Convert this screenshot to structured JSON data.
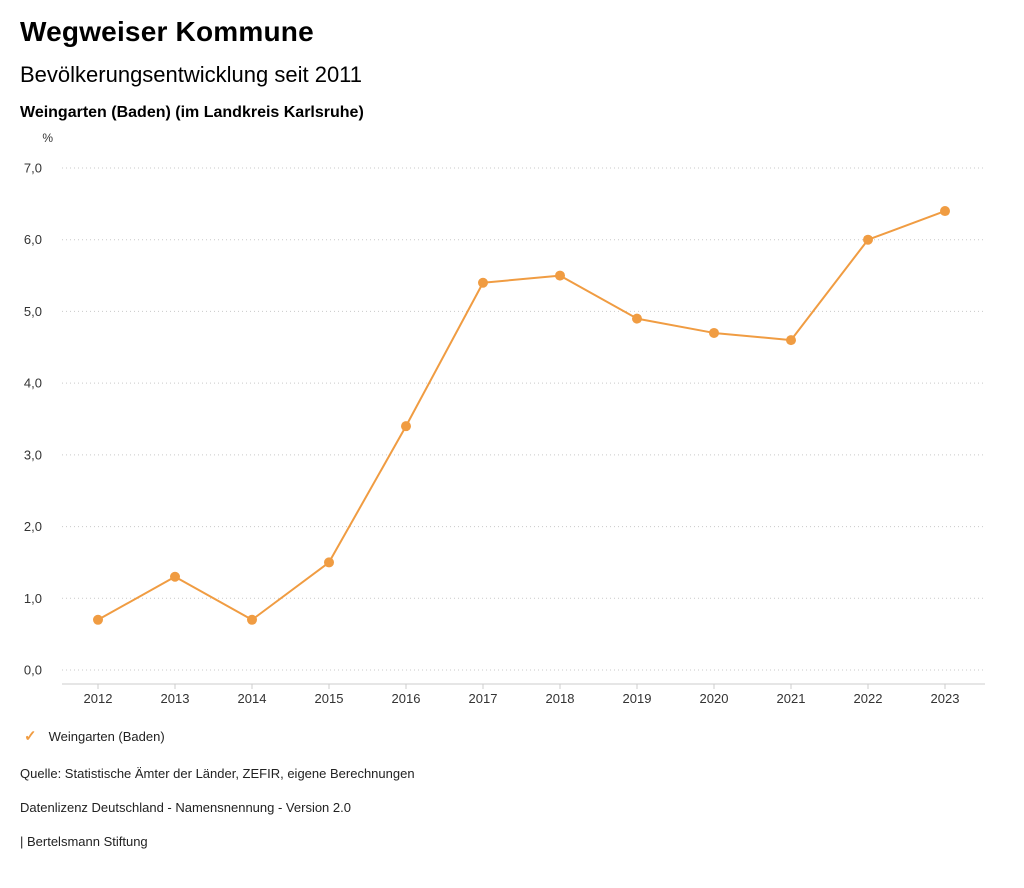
{
  "header": {
    "title": "Wegweiser Kommune",
    "subtitle": "Bevölkerungsentwicklung seit 2011",
    "region": "Weingarten (Baden) (im Landkreis Karlsruhe)"
  },
  "chart_data": {
    "type": "line",
    "title": "Bevölkerungsentwicklung seit 2011",
    "subtitle": "Weingarten (Baden) (im Landkreis Karlsruhe)",
    "unit_label": "%",
    "categories": [
      "2012",
      "2013",
      "2014",
      "2015",
      "2016",
      "2017",
      "2018",
      "2019",
      "2020",
      "2021",
      "2022",
      "2023"
    ],
    "series": [
      {
        "name": "Weingarten (Baden)",
        "color": "#f09c42",
        "values": [
          0.7,
          1.3,
          0.7,
          1.5,
          3.4,
          5.4,
          5.5,
          4.9,
          4.7,
          4.6,
          6.0,
          6.4
        ]
      }
    ],
    "ylim": [
      0,
      7
    ],
    "yticks": [
      0,
      1,
      2,
      3,
      4,
      5,
      6,
      7
    ],
    "ytick_labels": [
      "0,0",
      "1,0",
      "2,0",
      "3,0",
      "4,0",
      "5,0",
      "6,0",
      "7,0"
    ],
    "grid": "horizontal-dotted",
    "legend_position": "bottom-left"
  },
  "legend": {
    "items": [
      {
        "label": "Weingarten (Baden)",
        "marker": "check",
        "color": "#f09c42"
      }
    ]
  },
  "footer": {
    "source": "Quelle: Statistische Ämter der Länder, ZEFIR, eigene Berechnungen",
    "license": "Datenlizenz Deutschland - Namensnennung - Version 2.0",
    "attribution": "| Bertelsmann Stiftung"
  }
}
